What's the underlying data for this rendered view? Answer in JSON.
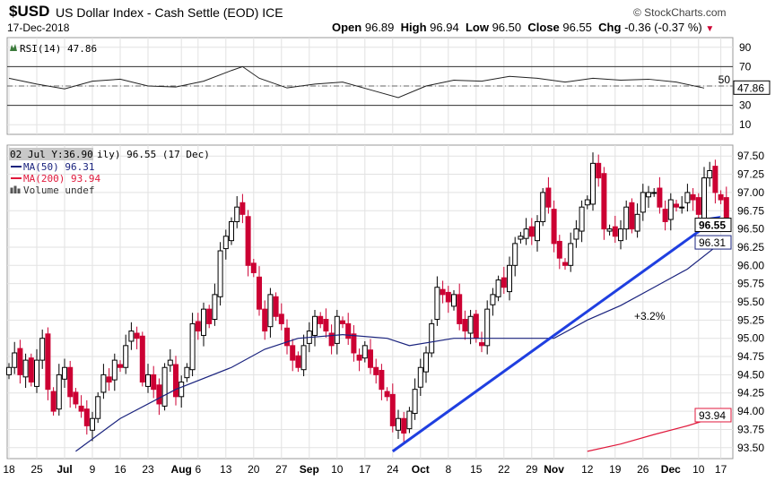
{
  "header": {
    "symbol": "$USD",
    "name": "US Dollar Index - Cash Settle (EOD) ICE",
    "date": "17-Dec-2018",
    "watermark": "© StockCharts.com",
    "open_label": "Open",
    "open": "96.89",
    "high_label": "High",
    "high": "96.94",
    "low_label": "Low",
    "low": "96.50",
    "close_label": "Close",
    "close": "96.55",
    "chg_label": "Chg",
    "chg": "-0.36 (-0.37 %)"
  },
  "rsi_legend": "RSI(14) 47.86",
  "price_legend": {
    "tooltip": "02 Jul Y:36.90",
    "main": "ily) 96.55 (17 Dec)",
    "ma50": "MA(50) 96.31",
    "ma200": "MA(200) 93.94",
    "volume": "Volume undef"
  },
  "colors": {
    "up": "#000000",
    "down": "#cc0033",
    "ma50": "#1a237e",
    "ma200": "#e0193c",
    "trend": "#1f3fe0"
  },
  "chart_data": [
    {
      "type": "line",
      "title": "RSI(14)",
      "ylim": [
        0,
        100
      ],
      "yticks": [
        10,
        30,
        50,
        70,
        90
      ],
      "levels": [
        30,
        70
      ],
      "last_label": "47.86",
      "x_index": [
        0,
        5,
        10,
        15,
        20,
        25,
        30,
        35,
        40,
        42,
        45,
        50,
        55,
        60,
        65,
        70,
        75,
        80,
        85,
        90,
        95,
        100,
        105,
        110,
        115,
        120,
        125
      ],
      "values": [
        58,
        52,
        47,
        55,
        57,
        50,
        49,
        55,
        66,
        70,
        58,
        48,
        52,
        54,
        46,
        38,
        50,
        56,
        55,
        60,
        58,
        54,
        58,
        56,
        57,
        54,
        47.86
      ]
    },
    {
      "type": "candlestick",
      "ylim": [
        93.35,
        97.65
      ],
      "yticks": [
        "93.50",
        "93.75",
        "94.00",
        "94.25",
        "94.50",
        "94.75",
        "95.00",
        "95.25",
        "95.50",
        "95.75",
        "96.00",
        "96.25",
        "96.50",
        "96.75",
        "97.00",
        "97.25",
        "97.50"
      ],
      "xticks": [
        "18",
        "25",
        "Jul",
        "9",
        "16",
        "23",
        "Aug",
        "6",
        "13",
        "20",
        "27",
        "Sep",
        "10",
        "17",
        "24",
        "Oct",
        "8",
        "15",
        "22",
        "29",
        "Nov",
        "12",
        "19",
        "26",
        "Dec",
        "10",
        "17"
      ],
      "xtick_index": [
        0,
        5,
        10,
        15,
        20,
        25,
        31,
        34,
        39,
        44,
        49,
        54,
        59,
        64,
        69,
        74,
        79,
        84,
        89,
        94,
        98,
        104,
        109,
        114,
        119,
        124,
        128
      ],
      "closes": [
        94.6,
        94.8,
        94.5,
        94.7,
        94.4,
        94.7,
        95.0,
        94.3,
        94.0,
        94.5,
        94.6,
        94.2,
        94.1,
        94.0,
        93.8,
        93.9,
        94.2,
        94.5,
        94.4,
        94.7,
        94.6,
        94.9,
        95.1,
        95.0,
        94.4,
        94.5,
        94.3,
        94.1,
        94.6,
        94.7,
        94.2,
        94.4,
        94.6,
        95.2,
        95.1,
        95.4,
        95.2,
        95.6,
        96.2,
        96.4,
        96.6,
        96.8,
        96.7,
        96.0,
        95.9,
        95.4,
        95.1,
        95.6,
        95.3,
        95.2,
        94.9,
        94.7,
        94.6,
        94.9,
        95.1,
        95.3,
        95.2,
        95.1,
        94.9,
        95.3,
        95.2,
        95.0,
        94.8,
        94.7,
        94.9,
        94.6,
        94.5,
        94.3,
        94.2,
        93.8,
        93.9,
        93.7,
        94.0,
        94.3,
        94.6,
        94.8,
        95.2,
        95.7,
        95.6,
        95.5,
        95.6,
        95.2,
        95.1,
        95.3,
        95.0,
        94.9,
        95.4,
        95.6,
        95.8,
        95.7,
        96.0,
        96.3,
        96.4,
        96.5,
        96.4,
        96.6,
        97.0,
        96.8,
        96.3,
        96.1,
        96.0,
        96.3,
        96.5,
        96.8,
        96.9,
        97.4,
        97.2,
        96.5,
        96.5,
        96.4,
        96.5,
        96.8,
        96.5,
        96.7,
        97.0,
        97.0,
        97.0,
        96.8,
        96.6,
        96.9,
        96.8,
        96.8,
        97.0,
        96.9,
        96.7,
        97.2,
        97.3,
        97.0,
        96.9,
        96.55
      ],
      "ma50": {
        "x_index": [
          12,
          20,
          30,
          40,
          46,
          52,
          60,
          68,
          72,
          80,
          90,
          98,
          104,
          110,
          116,
          122,
          128
        ],
        "values": [
          93.45,
          93.9,
          94.3,
          94.6,
          94.85,
          95.0,
          95.05,
          95.0,
          94.9,
          95.0,
          95.0,
          95.0,
          95.25,
          95.45,
          95.7,
          95.95,
          96.31
        ]
      },
      "ma200": {
        "x_index": [
          104,
          110,
          116,
          122,
          128
        ],
        "values": [
          93.45,
          93.55,
          93.68,
          93.8,
          93.94
        ]
      },
      "last_labels": {
        "close": "96.55",
        "ma50": "96.31",
        "ma200": "93.94"
      },
      "trendline": {
        "from": {
          "x_index": 69,
          "y": 93.45
        },
        "to": {
          "x_index": 128,
          "y": 96.68
        }
      },
      "annotation": "+3.2%"
    }
  ]
}
